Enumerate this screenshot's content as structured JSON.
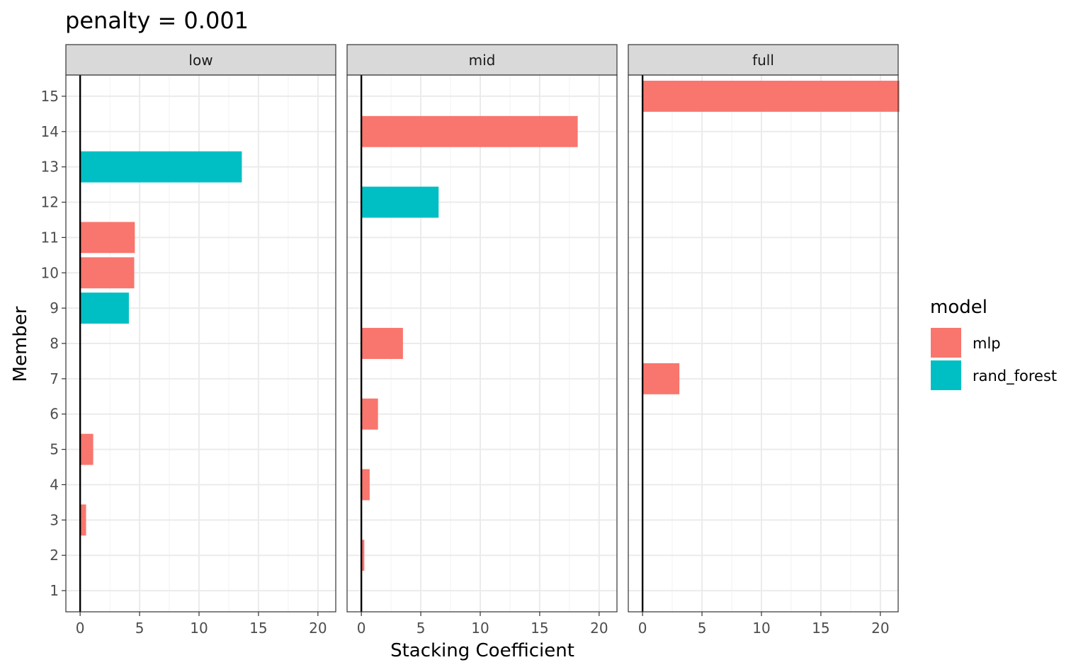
{
  "chart_data": {
    "type": "bar",
    "orientation": "horizontal",
    "title": "penalty = 0.001",
    "xlabel": "Stacking Coefficient",
    "ylabel": "Member",
    "xlim": [
      -1.2,
      21.5
    ],
    "xticks": [
      "0",
      "5",
      "10",
      "15",
      "20"
    ],
    "ylim": [
      0.4,
      15.6
    ],
    "yticks": [
      "1",
      "2",
      "3",
      "4",
      "5",
      "6",
      "7",
      "8",
      "9",
      "10",
      "11",
      "12",
      "13",
      "14",
      "15"
    ],
    "grid": true,
    "legend": {
      "title": "model",
      "position": "right",
      "entries": [
        {
          "label": "mlp",
          "color": "#F8766D"
        },
        {
          "label": "rand_forest",
          "color": "#00BFC4"
        }
      ]
    },
    "facets": [
      {
        "label": "low",
        "bars": [
          {
            "member": 13,
            "value": 13.6,
            "model": "rand_forest"
          },
          {
            "member": 11,
            "value": 4.6,
            "model": "mlp"
          },
          {
            "member": 10,
            "value": 4.55,
            "model": "mlp"
          },
          {
            "member": 9,
            "value": 4.1,
            "model": "rand_forest"
          },
          {
            "member": 5,
            "value": 1.1,
            "model": "mlp"
          },
          {
            "member": 3,
            "value": 0.5,
            "model": "mlp"
          }
        ]
      },
      {
        "label": "mid",
        "bars": [
          {
            "member": 14,
            "value": 18.2,
            "model": "mlp"
          },
          {
            "member": 12,
            "value": 6.5,
            "model": "rand_forest"
          },
          {
            "member": 8,
            "value": 3.5,
            "model": "mlp"
          },
          {
            "member": 6,
            "value": 1.4,
            "model": "mlp"
          },
          {
            "member": 4,
            "value": 0.7,
            "model": "mlp"
          },
          {
            "member": 2,
            "value": 0.25,
            "model": "mlp"
          }
        ]
      },
      {
        "label": "full",
        "bars": [
          {
            "member": 15,
            "value": 21.6,
            "model": "mlp"
          },
          {
            "member": 7,
            "value": 3.1,
            "model": "mlp"
          }
        ]
      }
    ]
  }
}
